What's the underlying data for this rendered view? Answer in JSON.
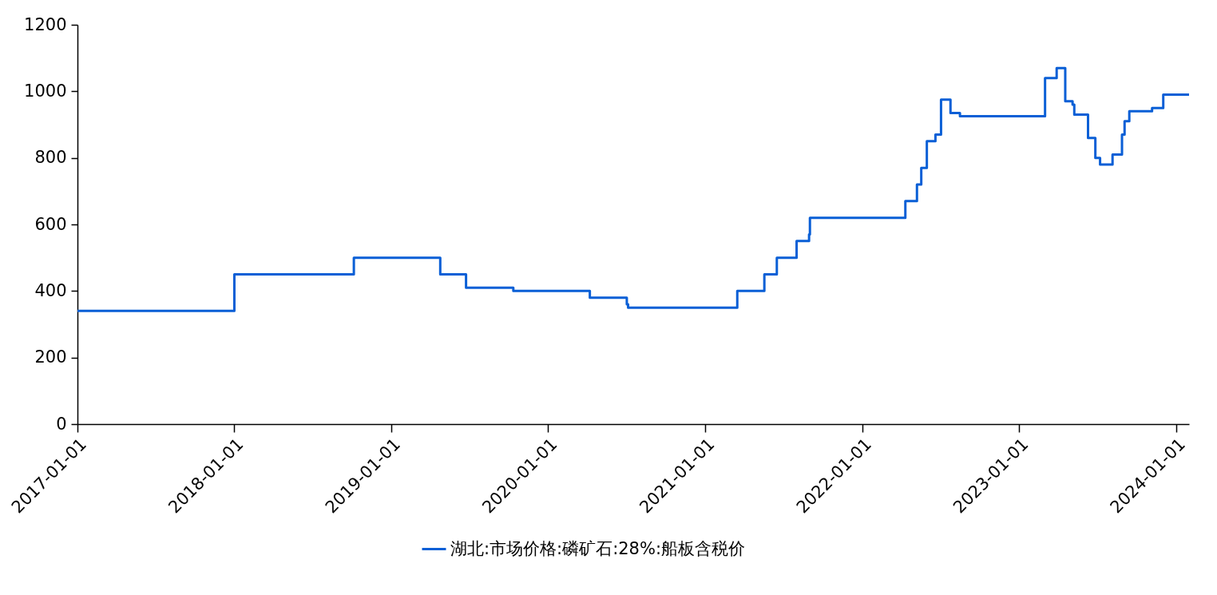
{
  "chart_data": {
    "type": "step",
    "x": [
      "2017-01-01",
      "2018-01-01",
      "2018-10-06",
      "2019-04-25",
      "2019-06-24",
      "2019-10-12",
      "2020-04-07",
      "2020-07-02",
      "2020-07-05",
      "2021-03-16",
      "2021-05-18",
      "2021-06-16",
      "2021-08-01",
      "2021-08-30",
      "2021-09-01",
      "2022-04-11",
      "2022-05-08",
      "2022-05-18",
      "2022-05-31",
      "2022-06-20",
      "2022-07-03",
      "2022-07-25",
      "2022-08-16",
      "2023-03-02",
      "2023-03-29",
      "2023-04-18",
      "2023-05-05",
      "2023-05-09",
      "2023-06-10",
      "2023-06-27",
      "2023-07-08",
      "2023-08-06",
      "2023-08-28",
      "2023-09-03",
      "2023-09-14",
      "2023-11-06",
      "2023-12-02",
      "2024-01-31"
    ],
    "series": [
      {
        "name": "湖北:市场价格:磷矿石:28%:船板含税价",
        "color": "#0a5fd6",
        "values": [
          340,
          450,
          500,
          450,
          410,
          400,
          380,
          360,
          350,
          400,
          450,
          500,
          550,
          570,
          620,
          670,
          720,
          770,
          850,
          870,
          975,
          935,
          925,
          1040,
          1070,
          970,
          960,
          930,
          860,
          800,
          780,
          810,
          870,
          910,
          940,
          950,
          990,
          990
        ]
      }
    ],
    "xlim": [
      "2017-01-01",
      "2024-01-31"
    ],
    "xticks": [
      "2017-01-01",
      "2018-01-01",
      "2019-01-01",
      "2020-01-01",
      "2021-01-01",
      "2022-01-01",
      "2023-01-01",
      "2024-01-01"
    ],
    "ylim": [
      0,
      1200
    ],
    "yticks": [
      0,
      200,
      400,
      600,
      800,
      1000,
      1200
    ],
    "grid": false,
    "legend": "bottom",
    "line_style": "solid"
  }
}
